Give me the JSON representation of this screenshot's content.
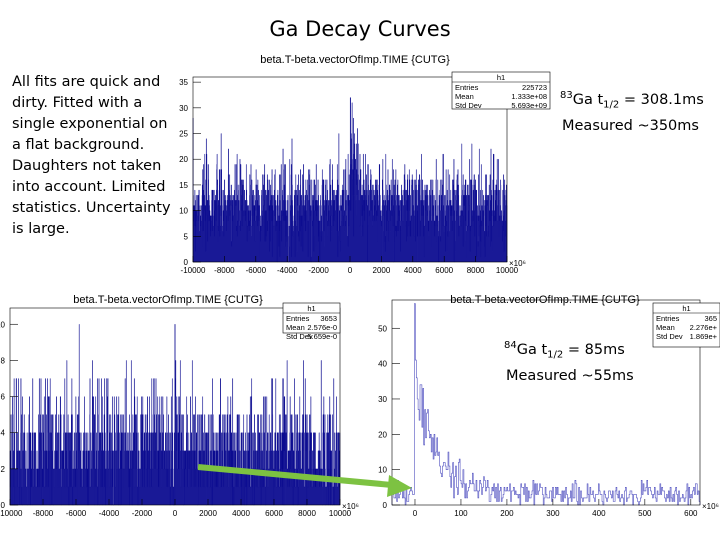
{
  "slide": {
    "title": "Ga Decay Curves",
    "notes": "All fits are quick and dirty. Fitted with a single exponential on a flat background. Daughters not taken into account. Limited statistics. Uncertainty is large.",
    "ga83": {
      "isotope_mass": "83",
      "isotope_label": "Ga t",
      "sub": "1/2",
      "value": " = 308.1ms",
      "measured": "Measured ~350ms"
    },
    "ga84": {
      "isotope_mass": "84",
      "isotope_label": "Ga t",
      "sub": "1/2",
      "value": " = 85ms",
      "measured": "Measured ~55ms"
    },
    "arrow_color": "#7dc242"
  },
  "chart_data": [
    {
      "type": "histogram",
      "title": "beta.T-beta.vectorOfImp.TIME {CUTG}",
      "color": "#00008b",
      "xlim": [
        -10000,
        10000
      ],
      "ylim": [
        0,
        36
      ],
      "x_exponent": "×10⁶",
      "xticks": [
        "-10000",
        "-8000",
        "-6000",
        "-4000",
        "-2000",
        "0",
        "2000",
        "4000",
        "6000",
        "8000",
        "10000"
      ],
      "yticks": [
        "0",
        "5",
        "10",
        "15",
        "20",
        "25",
        "30",
        "35"
      ],
      "background_level": 11,
      "peak_height": 30,
      "decay_half_life_x": 308,
      "stats": {
        "name": "h1",
        "rows": [
          [
            "Entries",
            "225723"
          ],
          [
            "Mean",
            "1.333e+08"
          ],
          [
            "Std Dev",
            "5.693e+09"
          ]
        ]
      }
    },
    {
      "type": "histogram",
      "title": "beta.T-beta.vectorOfImp.TIME {CUTG}",
      "color": "#00008b",
      "xlim": [
        -10000,
        10000
      ],
      "ylim": [
        0,
        10.9
      ],
      "x_exponent": "×10⁶",
      "xticks": [
        "-10000",
        "-8000",
        "-6000",
        "-4000",
        "-2000",
        "0",
        "2000",
        "4000",
        "6000",
        "8000",
        "10000"
      ],
      "yticks": [
        "0",
        "2",
        "4",
        "6",
        "8",
        "10"
      ],
      "background_level": 3,
      "peak_height": 10,
      "decay_half_life_x": 85,
      "stats": {
        "name": "h1",
        "rows": [
          [
            "Entries",
            "3653"
          ],
          [
            "Mean",
            "2.576e-0"
          ],
          [
            "Std Dev",
            "5.659e-0"
          ]
        ]
      }
    },
    {
      "type": "histogram",
      "title": "beta.T-beta.vectorOfImp.TIME {CUTG}",
      "color": "#5050c0",
      "xlim": [
        -50,
        620
      ],
      "ylim": [
        0,
        58
      ],
      "x_exponent": "×10⁶",
      "xticks": [
        "0",
        "100",
        "200",
        "300",
        "400",
        "500",
        "600"
      ],
      "yticks": [
        "0",
        "10",
        "20",
        "30",
        "40",
        "50"
      ],
      "background_level": 3,
      "peak_height": 57,
      "decay_half_life_x": 55,
      "stats": {
        "name": "h1",
        "rows": [
          [
            "Entries",
            "365"
          ],
          [
            "Mean",
            "2.276e+"
          ],
          [
            "Std Dev",
            "1.869e+"
          ]
        ]
      }
    }
  ]
}
